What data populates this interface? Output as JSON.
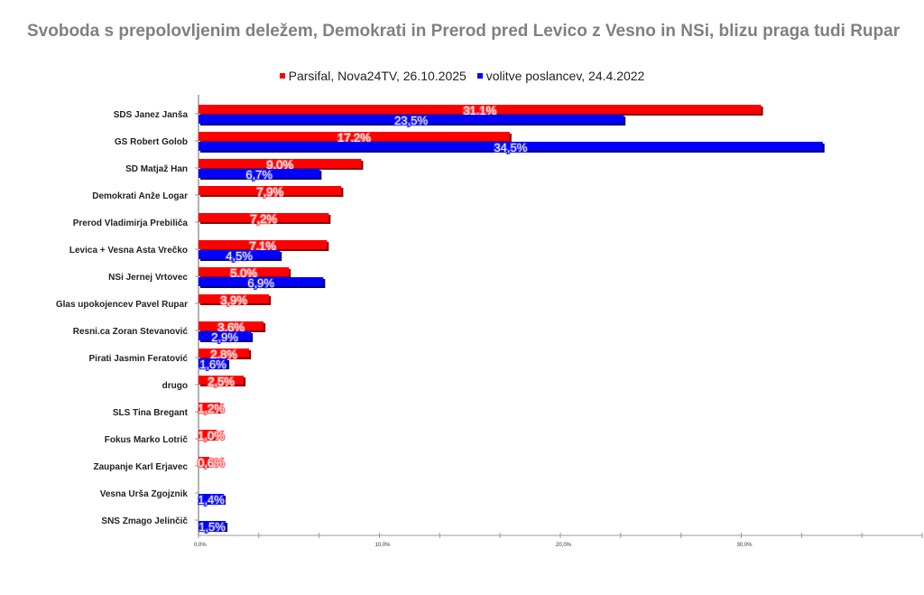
{
  "chart_data": {
    "type": "bar",
    "orientation": "horizontal",
    "title": "Svoboda s prepolovljenim deležem, Demokrati in Prerod pred Levico z Vesno in NSi, blizu praga tudi Rupar",
    "xlabel": "",
    "ylabel": "",
    "xlim": [
      0,
      40
    ],
    "x_ticks": [
      "0,0%",
      "10,0%",
      "20,0%",
      "30,0%"
    ],
    "legend_position": "top-center",
    "categories": [
      "SDS Janez Janša",
      "GS Robert Golob",
      "SD Matjaž Han",
      "Demokrati Anže Logar",
      "Prerod Vladimirja Prebiliča",
      "Levica + Vesna  Asta Vrečko",
      "NSi Jernej Vrtovec",
      "Glas upokojencev Pavel Rupar",
      "Resni.ca Zoran Stevanović",
      "Pirati Jasmin Feratović",
      "drugo",
      "SLS Tina Bregant",
      "Fokus Marko Lotrič",
      "Zaupanje Karl Erjavec",
      "Vesna Urša Zgojznik",
      "SNS Zmago Jelinčič"
    ],
    "series": [
      {
        "name": "Parsifal, Nova24TV, 26.10.2025",
        "color": "#ff0000",
        "values": [
          31.1,
          17.2,
          9.0,
          7.9,
          7.2,
          7.1,
          5.0,
          3.9,
          3.6,
          2.8,
          2.5,
          1.2,
          1.0,
          0.6,
          null,
          null
        ],
        "labels": [
          "31,1%",
          "17,2%",
          "9,0%",
          "7,9%",
          "7,2%",
          "7,1%",
          "5,0%",
          "3,9%",
          "3,6%",
          "2,8%",
          "2,5%",
          "1,2%",
          "1,0%",
          "0,6%",
          null,
          null
        ]
      },
      {
        "name": "volitve poslancev, 24.4.2022",
        "color": "#0000ff",
        "values": [
          23.5,
          34.5,
          6.7,
          null,
          null,
          4.5,
          6.9,
          null,
          2.9,
          1.6,
          null,
          null,
          null,
          null,
          1.4,
          1.5
        ],
        "labels": [
          "23,5%",
          "34,5%",
          "6,7%",
          null,
          null,
          "4,5%",
          "6,9%",
          null,
          "2,9%",
          "1,6%",
          null,
          null,
          null,
          null,
          "1,4%",
          "1,5%"
        ]
      }
    ]
  }
}
